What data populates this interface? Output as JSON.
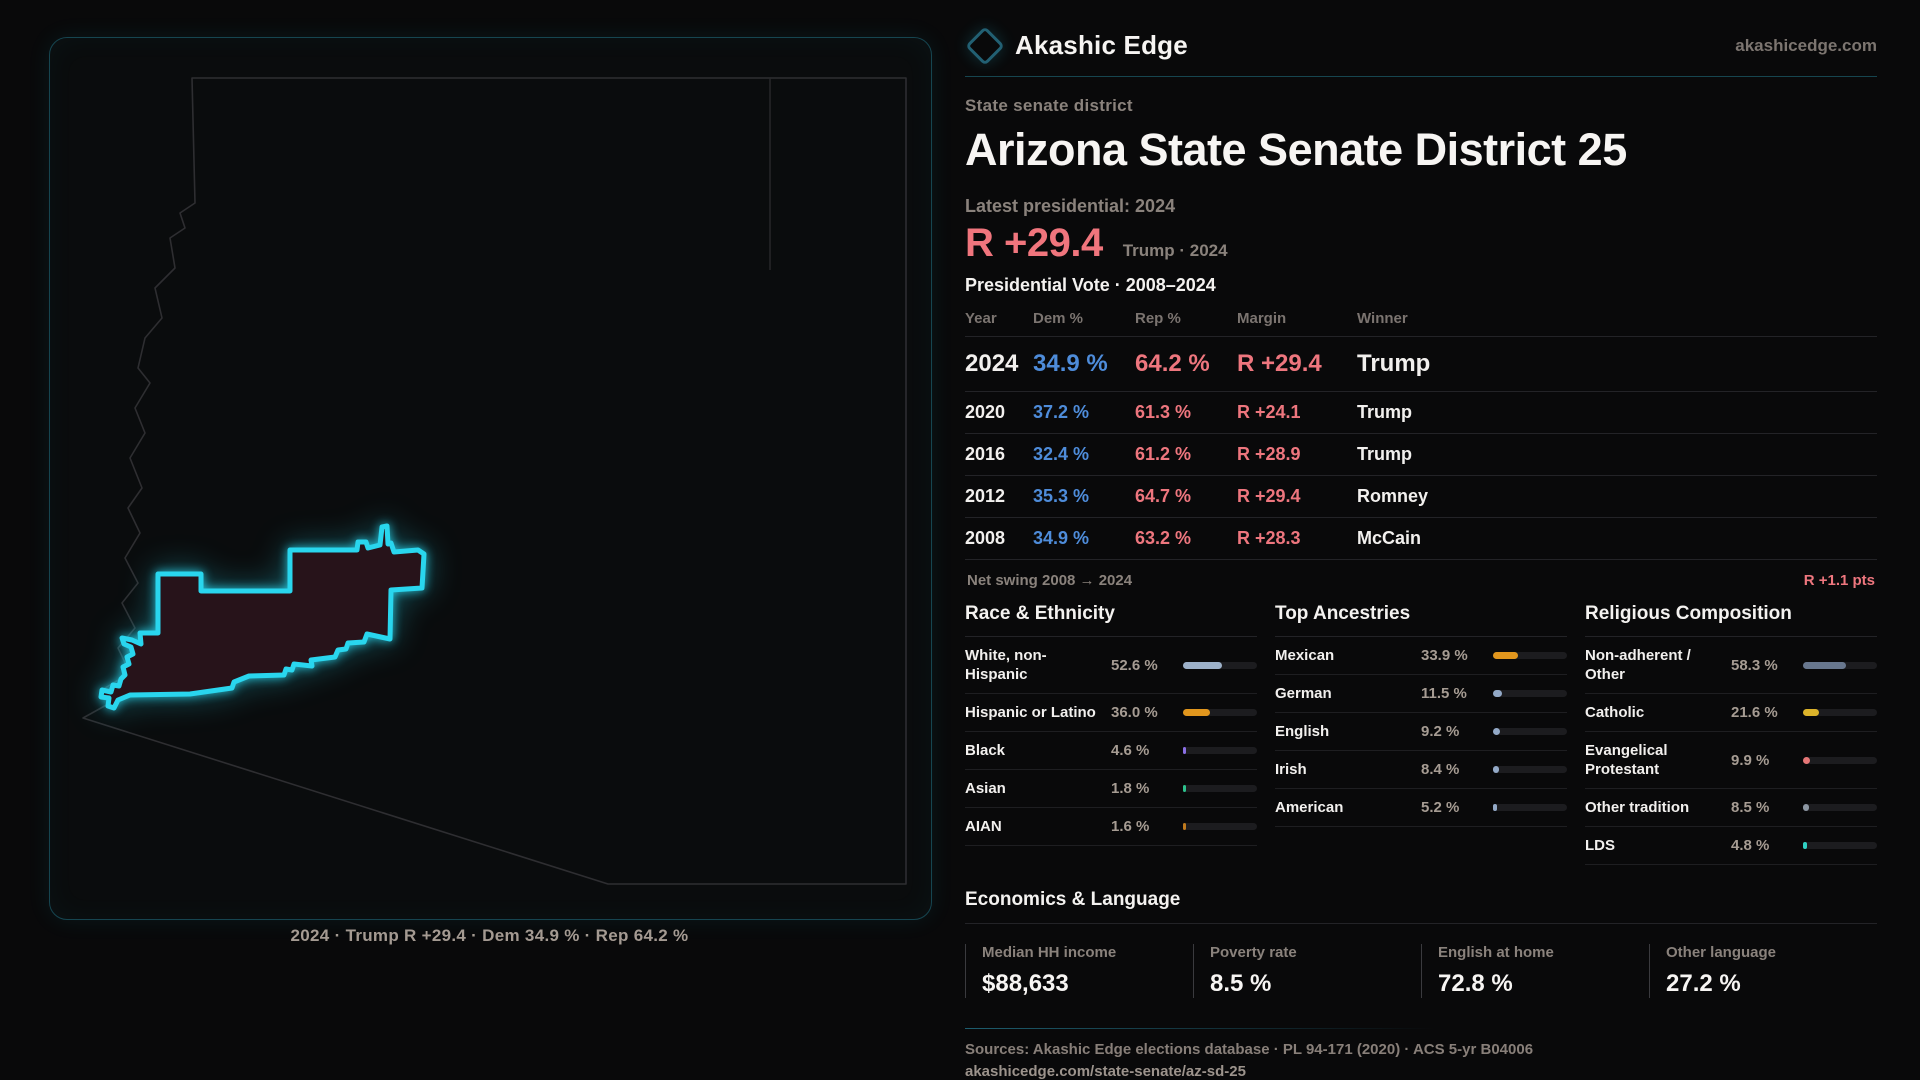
{
  "brand": {
    "name": "Akashic Edge",
    "domain": "akashicedge.com"
  },
  "colors": {
    "accent_cyan": "#29d6ee",
    "dem_blue": "#4e8cda",
    "rep_red": "#ee767e"
  },
  "header": {
    "kicker": "State senate district",
    "title": "Arizona State Senate District 25"
  },
  "headline": {
    "label": "Latest presidential: 2024",
    "margin": "R +29.4",
    "note": "Trump · 2024"
  },
  "vote_table": {
    "title": "Presidential Vote · 2008–2024",
    "columns": [
      "Year",
      "Dem %",
      "Rep %",
      "Margin",
      "Winner"
    ],
    "rows": [
      {
        "year": "2024",
        "dem": "34.9 %",
        "rep": "64.2 %",
        "margin": "R +29.4",
        "winner": "Trump"
      },
      {
        "year": "2020",
        "dem": "37.2 %",
        "rep": "61.3 %",
        "margin": "R +24.1",
        "winner": "Trump"
      },
      {
        "year": "2016",
        "dem": "32.4 %",
        "rep": "61.2 %",
        "margin": "R +28.9",
        "winner": "Trump"
      },
      {
        "year": "2012",
        "dem": "35.3 %",
        "rep": "64.7 %",
        "margin": "R +29.4",
        "winner": "Romney"
      },
      {
        "year": "2008",
        "dem": "34.9 %",
        "rep": "63.2 %",
        "margin": "R +28.3",
        "winner": "McCain"
      }
    ]
  },
  "net_swing": {
    "label": "Net swing 2008 → 2024",
    "value": "R +1.1 pts"
  },
  "chart_data": [
    {
      "type": "bar",
      "title": "Race & Ethnicity",
      "categories": [
        "White, non-Hispanic",
        "Hispanic or Latino",
        "Black",
        "Asian",
        "AIAN"
      ],
      "values": [
        52.6,
        36.0,
        4.6,
        1.8,
        1.6
      ],
      "xlim": [
        0,
        100
      ]
    },
    {
      "type": "bar",
      "title": "Top Ancestries",
      "categories": [
        "Mexican",
        "German",
        "English",
        "Irish",
        "American"
      ],
      "values": [
        33.9,
        11.5,
        9.2,
        8.4,
        5.2
      ],
      "xlim": [
        0,
        100
      ]
    },
    {
      "type": "bar",
      "title": "Religious Composition",
      "categories": [
        "Non-adherent / Other",
        "Catholic",
        "Evangelical Protestant",
        "Other tradition",
        "LDS"
      ],
      "values": [
        58.3,
        21.6,
        9.9,
        8.5,
        4.8
      ],
      "xlim": [
        0,
        100
      ]
    }
  ],
  "demographics": [
    {
      "title": "Race & Ethnicity",
      "rows": [
        {
          "label": "White, non-Hispanic",
          "value": "52.6 %",
          "pct": 52.6,
          "color": "#9db1c9"
        },
        {
          "label": "Hispanic or Latino",
          "value": "36.0 %",
          "pct": 36.0,
          "color": "#e1961d"
        },
        {
          "label": "Black",
          "value": "4.6 %",
          "pct": 4.6,
          "color": "#8a6fe4"
        },
        {
          "label": "Asian",
          "value": "1.8 %",
          "pct": 1.8,
          "color": "#2dc08c"
        },
        {
          "label": "AIAN",
          "value": "1.6 %",
          "pct": 1.6,
          "color": "#bf7a1e"
        }
      ]
    },
    {
      "title": "Top Ancestries",
      "rows": [
        {
          "label": "Mexican",
          "value": "33.9 %",
          "pct": 33.9,
          "color": "#e1961d"
        },
        {
          "label": "German",
          "value": "11.5 %",
          "pct": 11.5,
          "color": "#93a9c7"
        },
        {
          "label": "English",
          "value": "9.2 %",
          "pct": 9.2,
          "color": "#93a9c7"
        },
        {
          "label": "Irish",
          "value": "8.4 %",
          "pct": 8.4,
          "color": "#93a9c7"
        },
        {
          "label": "American",
          "value": "5.2 %",
          "pct": 5.2,
          "color": "#93a9c7"
        }
      ]
    },
    {
      "title": "Religious Composition",
      "rows": [
        {
          "label": "Non-adherent / Other",
          "value": "58.3 %",
          "pct": 58.3,
          "color": "#68778e"
        },
        {
          "label": "Catholic",
          "value": "21.6 %",
          "pct": 21.6,
          "color": "#dcb32a"
        },
        {
          "label": "Evangelical Protestant",
          "value": "9.9 %",
          "pct": 9.9,
          "color": "#e57676"
        },
        {
          "label": "Other tradition",
          "value": "8.5 %",
          "pct": 8.5,
          "color": "#8c96a2"
        },
        {
          "label": "LDS",
          "value": "4.8 %",
          "pct": 4.8,
          "color": "#2fd0c3"
        }
      ]
    }
  ],
  "economics": {
    "title": "Economics & Language",
    "stats": [
      {
        "label": "Median HH income",
        "value": "$88,633"
      },
      {
        "label": "Poverty rate",
        "value": "8.5 %"
      },
      {
        "label": "English at home",
        "value": "72.8 %"
      },
      {
        "label": "Other language",
        "value": "27.2 %"
      }
    ]
  },
  "map": {
    "caption": "2024 · Trump R +29.4 · Dem 34.9 % · Rep 64.2 %"
  },
  "footer": {
    "sources": "Sources: Akashic Edge elections database · PL 94-171 (2020) · ACS 5-yr B04006",
    "url": "akashicedge.com/state-senate/az-sd-25"
  }
}
